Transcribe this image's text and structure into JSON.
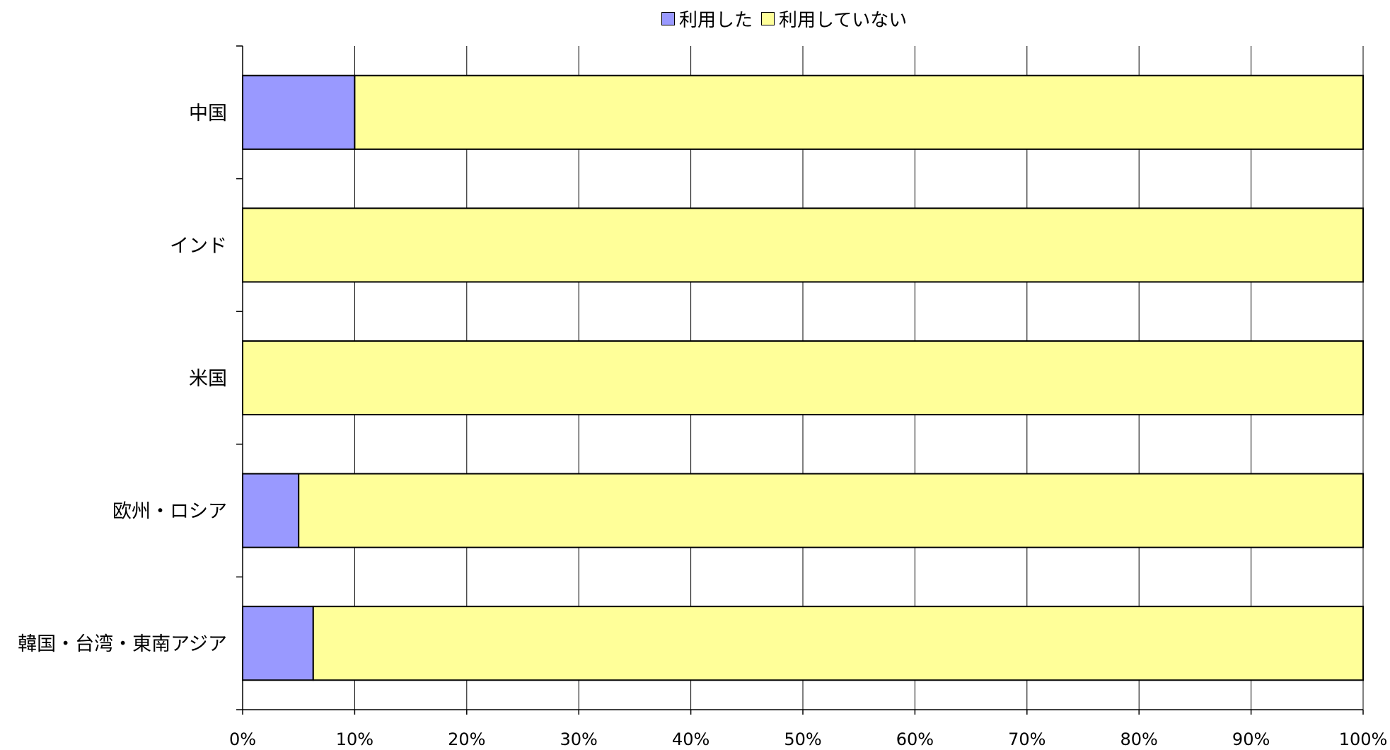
{
  "chart_data": {
    "type": "bar",
    "orientation": "horizontal",
    "stacked": "percent",
    "title": "",
    "xlabel": "",
    "ylabel": "",
    "categories": [
      "中国",
      "インド",
      "米国",
      "欧州・ロシア",
      "韓国・台湾・東南アジア"
    ],
    "series": [
      {
        "name": "利用した",
        "color": "#9999ff",
        "values": [
          10,
          0,
          0,
          5,
          6.3
        ]
      },
      {
        "name": "利用していない",
        "color": "#ffff99",
        "values": [
          90,
          100,
          100,
          95,
          93.7
        ]
      }
    ],
    "xlim": [
      0,
      100
    ],
    "x_ticks": [
      "0%",
      "10%",
      "20%",
      "30%",
      "40%",
      "50%",
      "60%",
      "70%",
      "80%",
      "90%",
      "100%"
    ],
    "grid": true,
    "legend_position": "top"
  }
}
